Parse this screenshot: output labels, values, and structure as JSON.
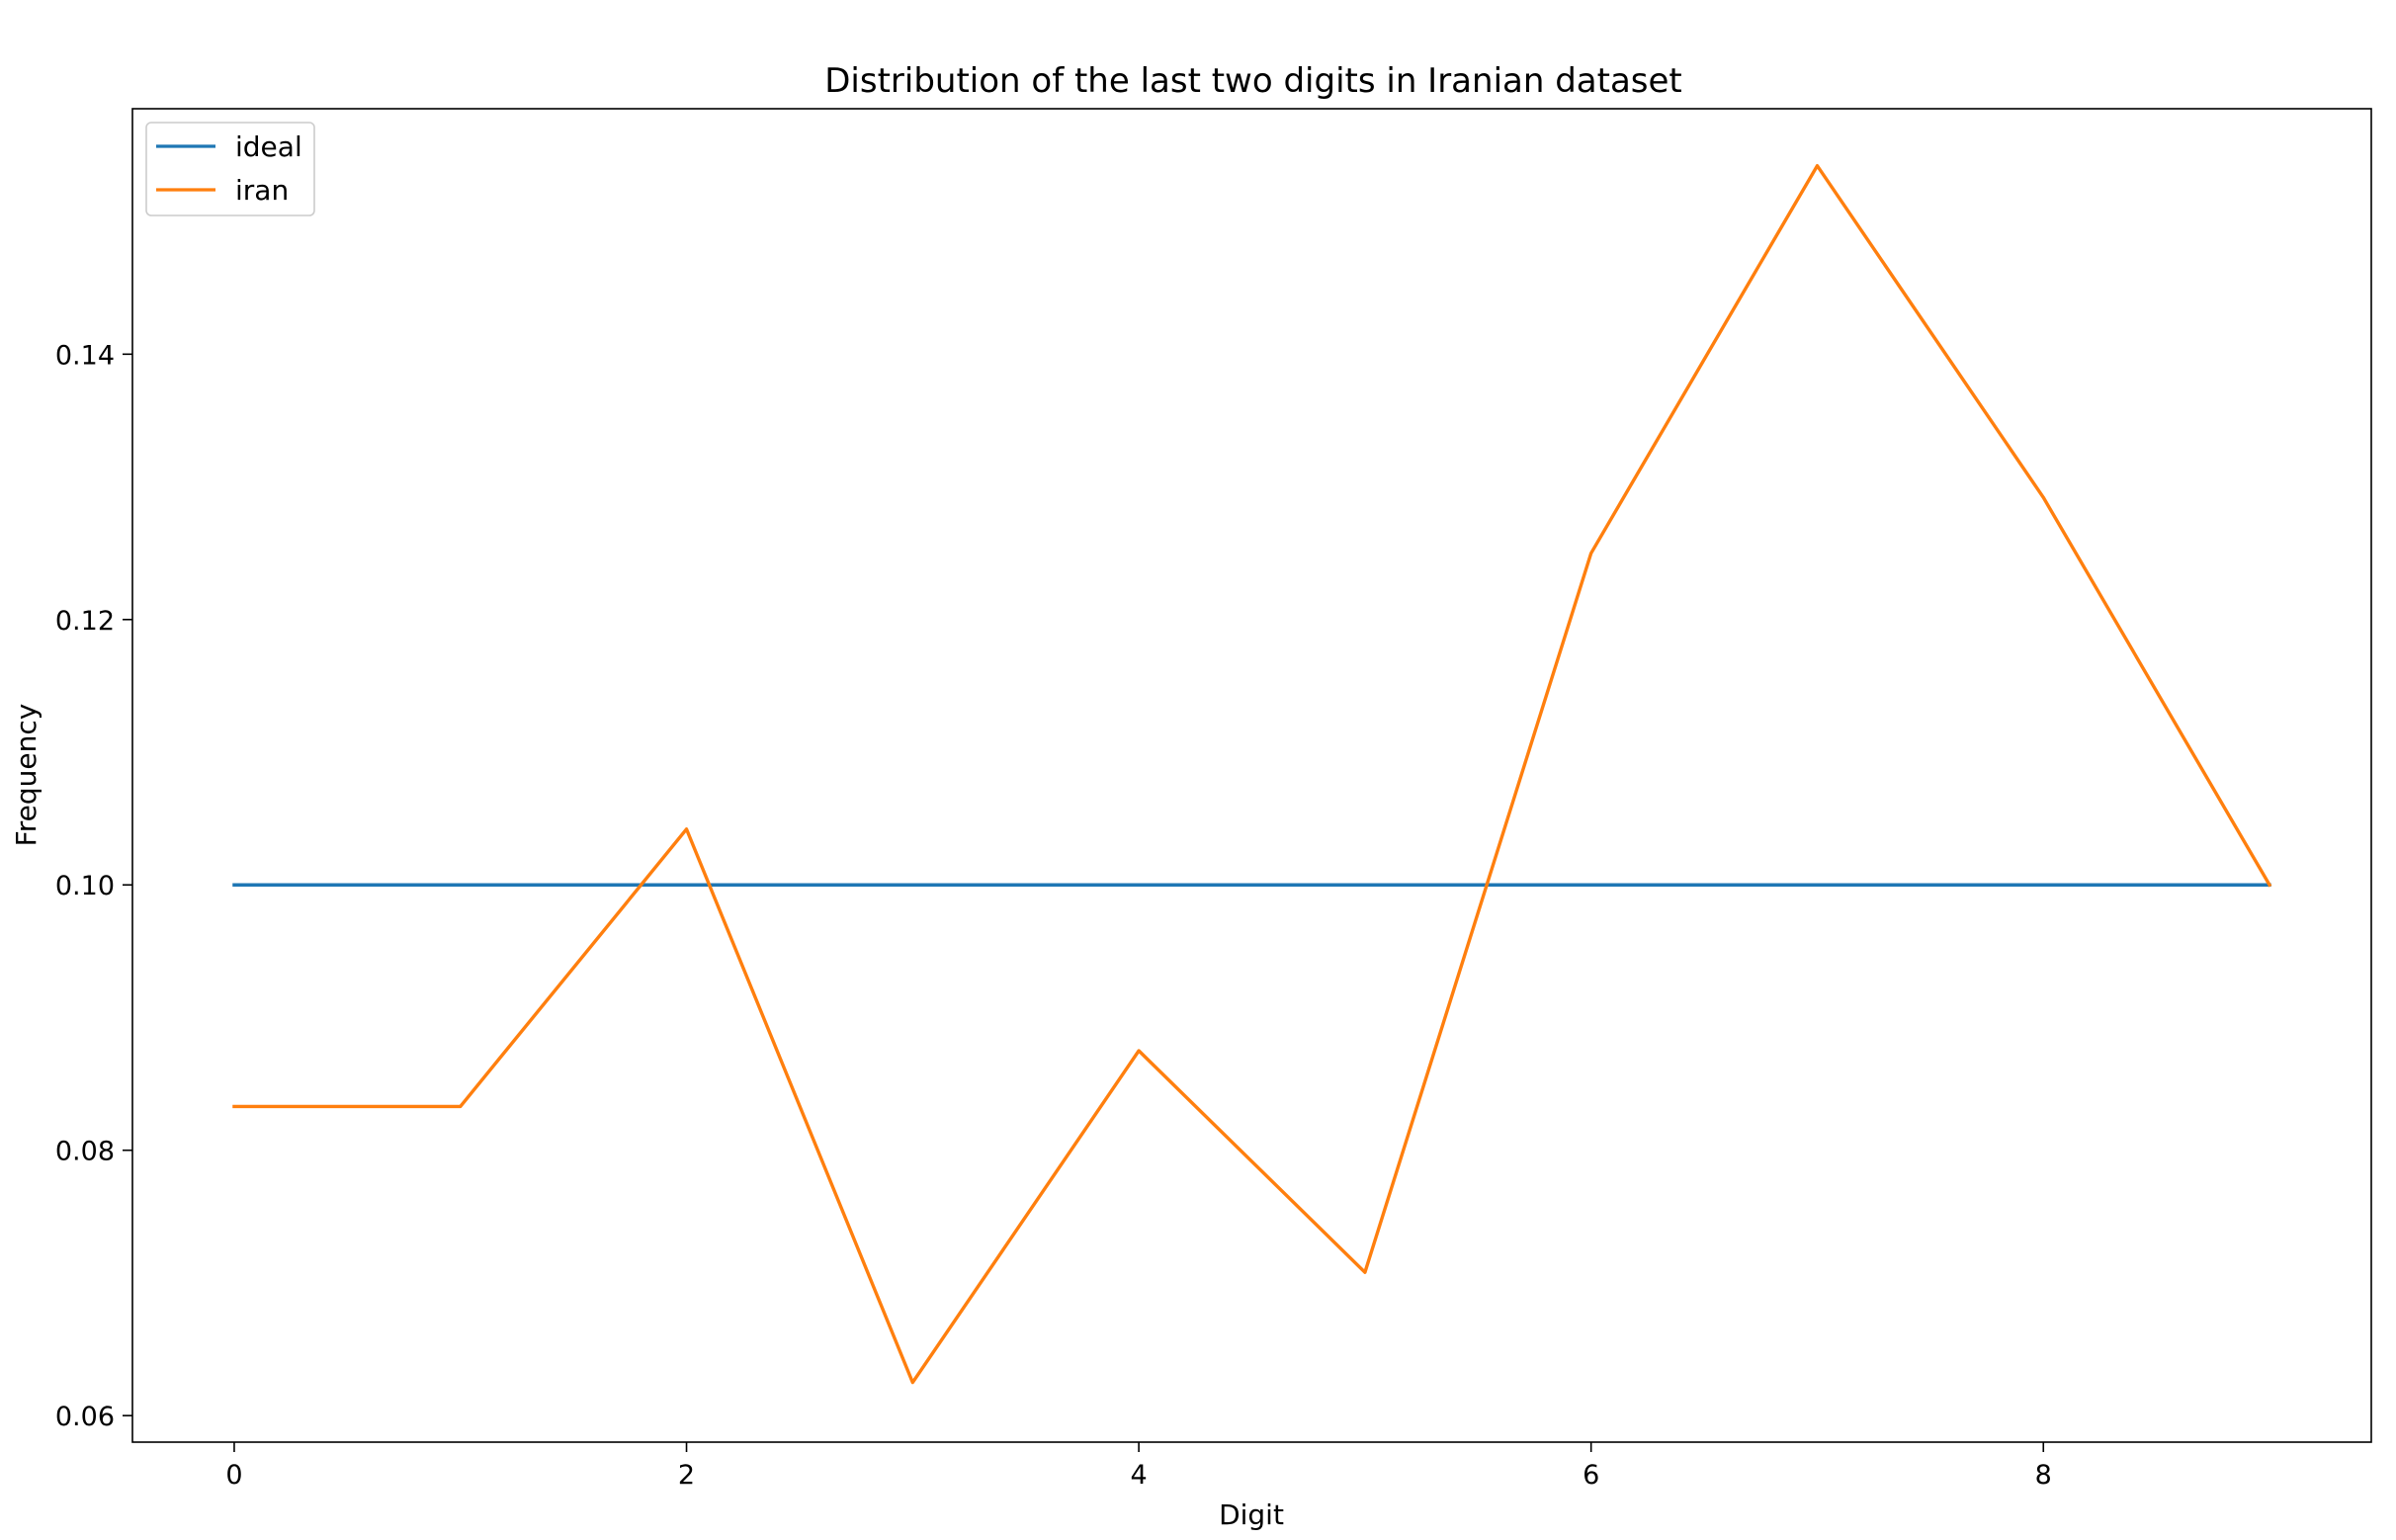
{
  "chart_data": {
    "type": "line",
    "title": "Distribution of the last two digits in Iranian dataset",
    "xlabel": "Digit",
    "ylabel": "Frequency",
    "x": [
      0,
      1,
      2,
      3,
      4,
      5,
      6,
      7,
      8,
      9
    ],
    "series": [
      {
        "name": "ideal",
        "color": "#1f77b4",
        "values": [
          0.1,
          0.1,
          0.1,
          0.1,
          0.1,
          0.1,
          0.1,
          0.1,
          0.1,
          0.1
        ]
      },
      {
        "name": "iran",
        "color": "#ff7f0e",
        "values": [
          0.0833,
          0.0833,
          0.1042,
          0.0625,
          0.0875,
          0.0708,
          0.125,
          0.1542,
          0.1292,
          0.1
        ]
      }
    ],
    "xlim": [
      -0.45,
      9.45
    ],
    "ylim": [
      0.058,
      0.1585
    ],
    "xticks": [
      0,
      2,
      4,
      6,
      8
    ],
    "xtick_labels": [
      "0",
      "2",
      "4",
      "6",
      "8"
    ],
    "yticks": [
      0.06,
      0.08,
      0.1,
      0.12,
      0.14
    ],
    "ytick_labels": [
      "0.06",
      "0.08",
      "0.10",
      "0.12",
      "0.14"
    ],
    "grid": false,
    "legend_position": "top-left"
  }
}
